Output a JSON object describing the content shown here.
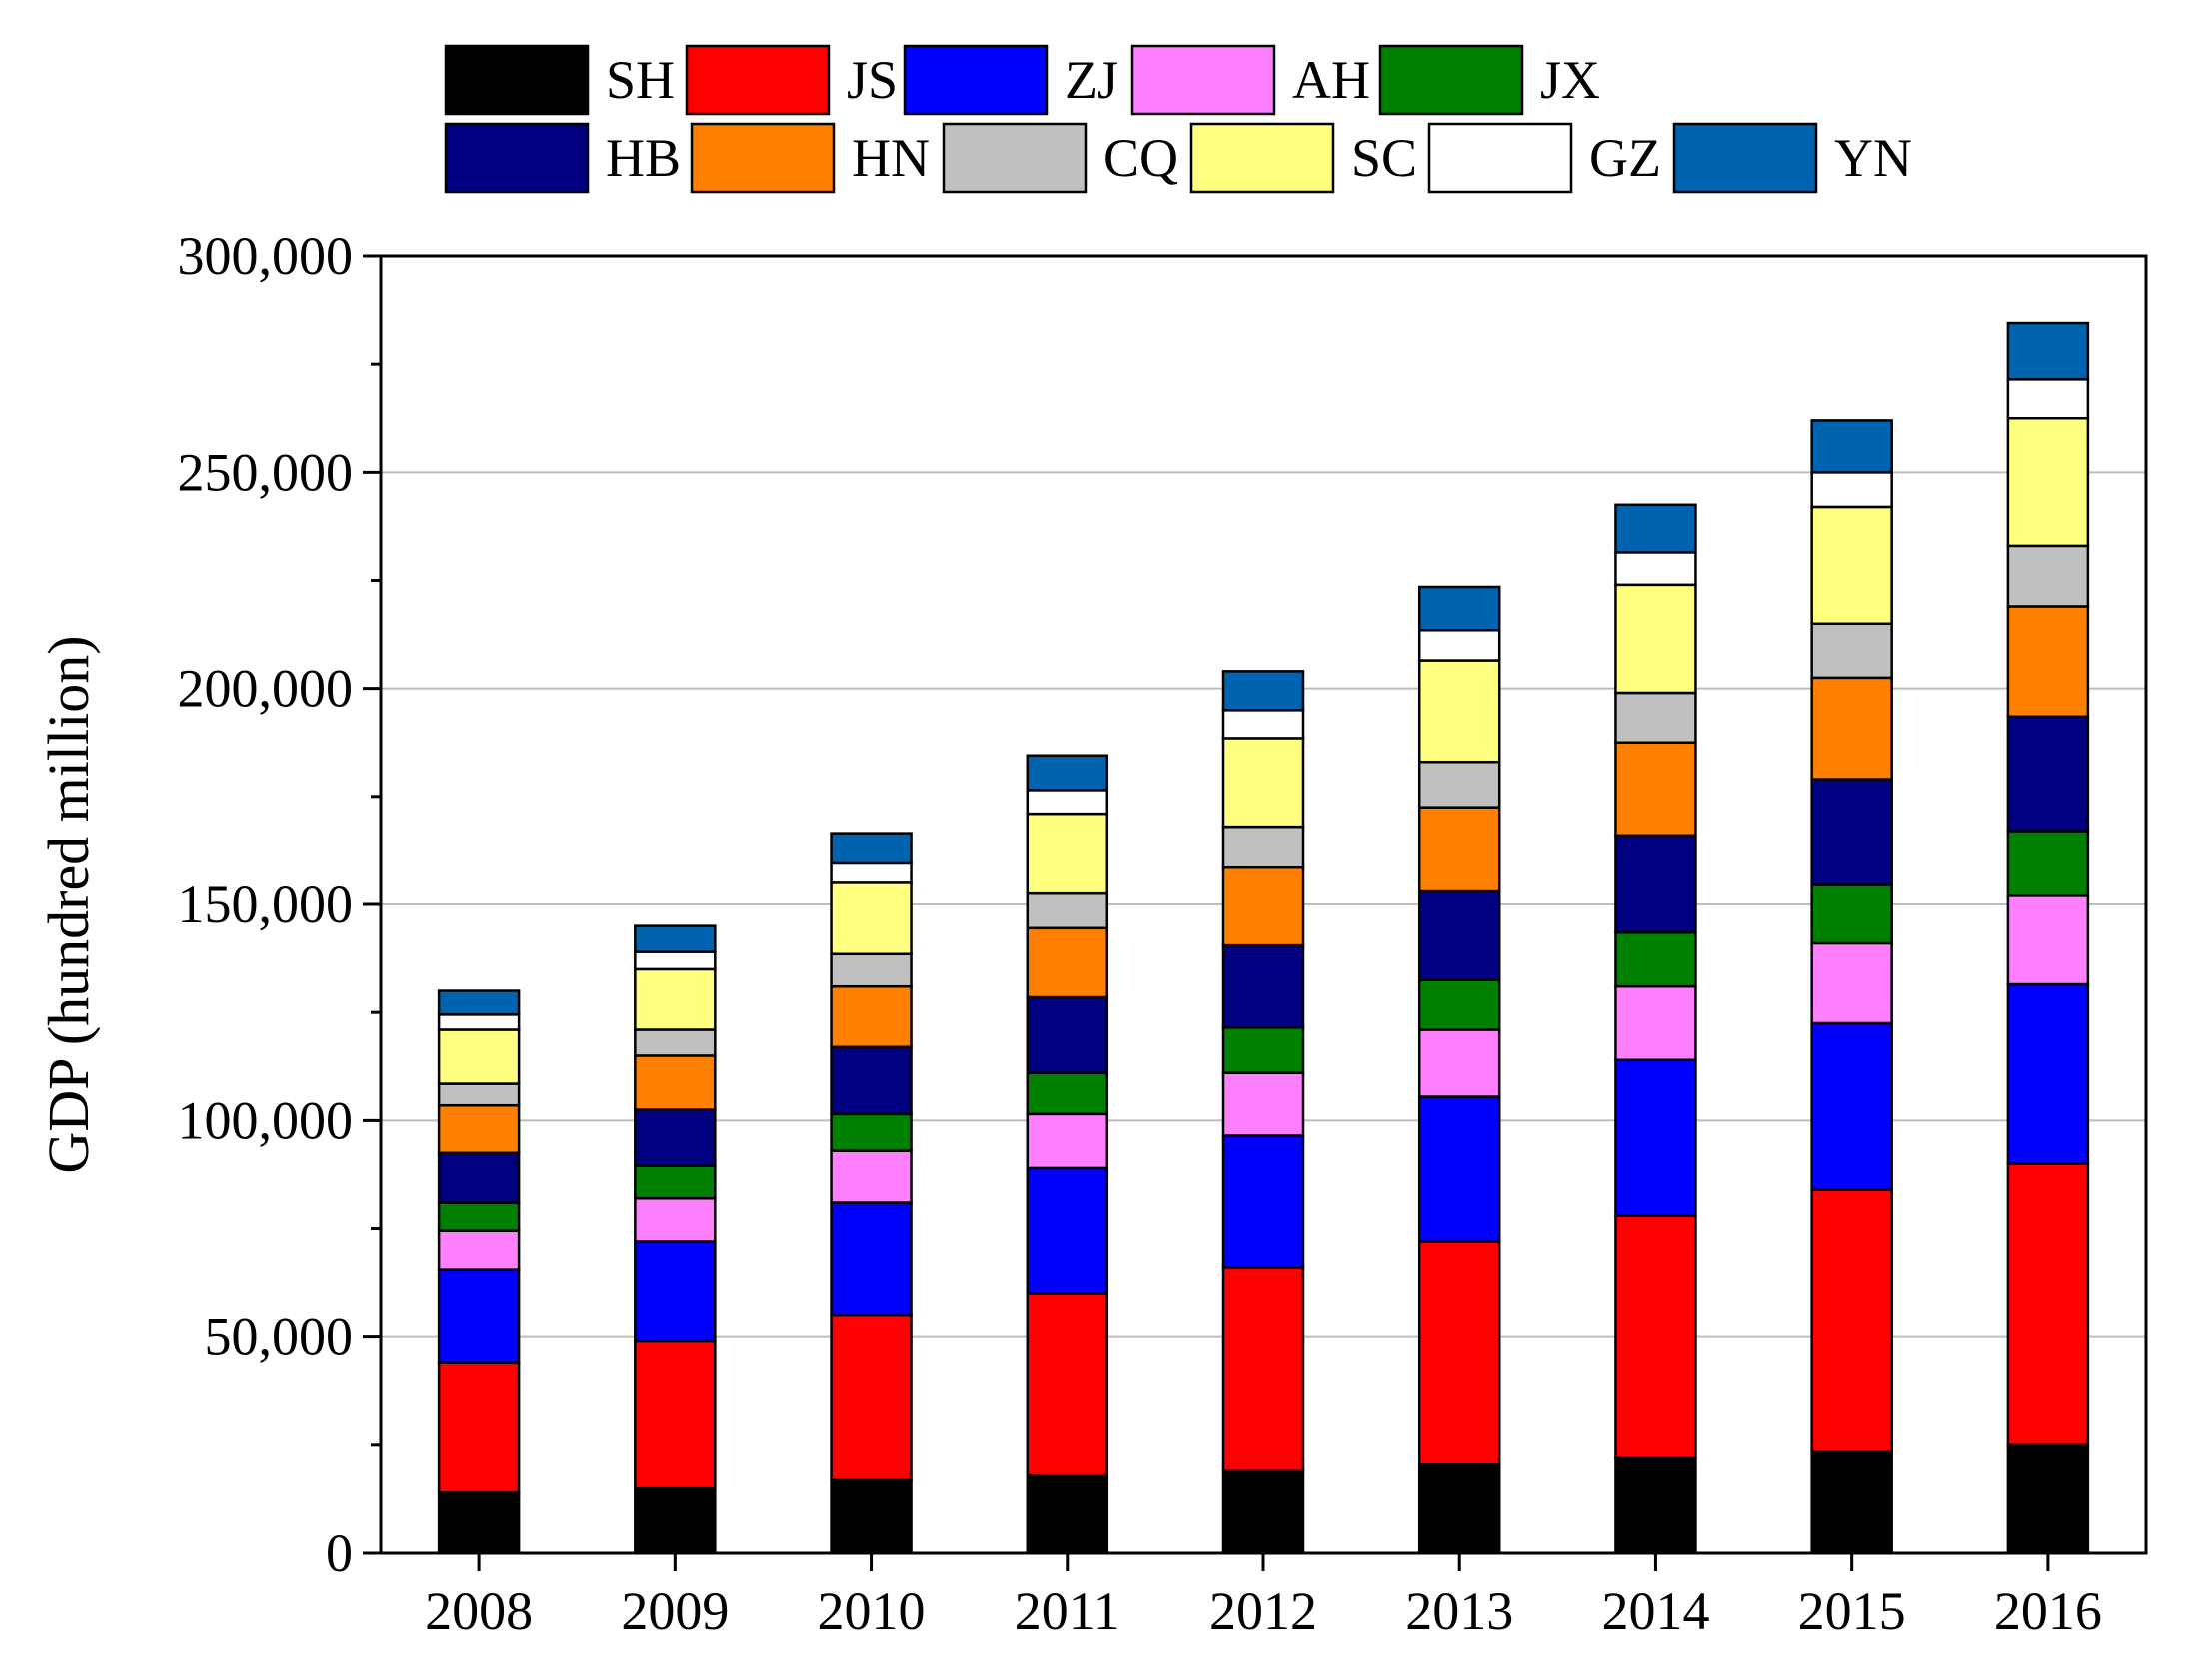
{
  "chart_data": {
    "type": "bar",
    "stacked": true,
    "title": "",
    "xlabel": "",
    "ylabel": "GDP (hundred million)",
    "ylim": [
      0,
      300000
    ],
    "yticks": [
      0,
      50000,
      100000,
      150000,
      200000,
      250000,
      300000
    ],
    "ytick_labels": [
      "0",
      "50,000",
      "100,000",
      "150,000",
      "200,000",
      "250,000",
      "300,000"
    ],
    "grid": "horizontal",
    "legend_position": "top",
    "categories": [
      "2008",
      "2009",
      "2010",
      "2011",
      "2012",
      "2013",
      "2014",
      "2015",
      "2016"
    ],
    "series": [
      {
        "name": "SH",
        "color": "#000000",
        "values": [
          14000,
          15000,
          17000,
          18000,
          19000,
          20500,
          22000,
          23500,
          25000
        ]
      },
      {
        "name": "JS",
        "color": "#ff0000",
        "values": [
          30000,
          34000,
          38000,
          42000,
          47000,
          51500,
          56000,
          60500,
          65000
        ]
      },
      {
        "name": "ZJ",
        "color": "#0000ff",
        "values": [
          21500,
          23000,
          26000,
          29000,
          30500,
          33500,
          36000,
          38500,
          41500
        ]
      },
      {
        "name": "AH",
        "color": "#ff80ff",
        "values": [
          9000,
          10000,
          12000,
          12500,
          14500,
          15500,
          17000,
          18500,
          20500
        ]
      },
      {
        "name": "JX",
        "color": "#008000",
        "values": [
          6500,
          7500,
          8500,
          9500,
          10500,
          11500,
          12500,
          13500,
          15000
        ]
      },
      {
        "name": "HB",
        "color": "#000080",
        "values": [
          11500,
          13000,
          15500,
          17500,
          19000,
          20500,
          22500,
          24500,
          26500
        ]
      },
      {
        "name": "HN",
        "color": "#ff8000",
        "values": [
          11000,
          12500,
          14000,
          16000,
          18000,
          19500,
          21500,
          23500,
          25500
        ]
      },
      {
        "name": "CQ",
        "color": "#c0c0c0",
        "values": [
          5000,
          6000,
          7500,
          8000,
          9500,
          10500,
          11500,
          12500,
          14000
        ]
      },
      {
        "name": "SC",
        "color": "#ffff80",
        "values": [
          12500,
          14000,
          16500,
          18500,
          20500,
          23500,
          25000,
          27000,
          29500
        ]
      },
      {
        "name": "GZ",
        "color": "#ffffff",
        "values": [
          3500,
          4000,
          4500,
          5500,
          6500,
          7000,
          7500,
          8000,
          9000
        ]
      },
      {
        "name": "YN",
        "color": "#0063b0",
        "values": [
          5500,
          6000,
          7000,
          8000,
          9000,
          10000,
          11000,
          12000,
          13000
        ]
      }
    ]
  }
}
